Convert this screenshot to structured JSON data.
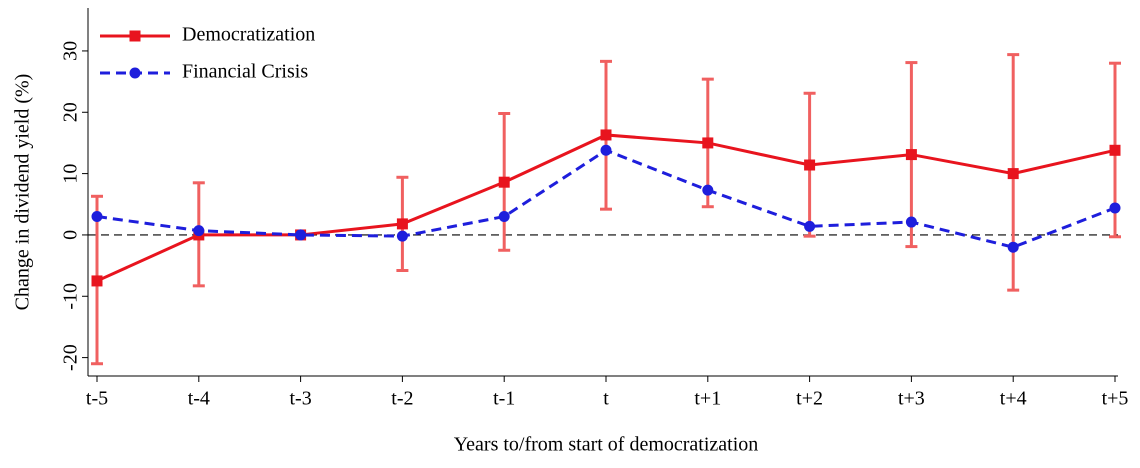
{
  "chart_data": {
    "type": "line",
    "y_label": "Change in dividend yield (%)",
    "x_label": "Years to/from start of democratization",
    "categories": [
      "t-5",
      "t-4",
      "t-3",
      "t-2",
      "t-1",
      "t",
      "t+1",
      "t+2",
      "t+3",
      "t+4",
      "t+5"
    ],
    "series": [
      {
        "name": "Democratization",
        "color": "#e8141e",
        "error_color": "#f06060",
        "dash": false,
        "marker": "square",
        "values": [
          -7.5,
          0,
          0,
          1.8,
          8.6,
          16.3,
          15,
          11.4,
          13.1,
          10,
          13.8
        ],
        "error_lower": [
          -21,
          -8.3,
          null,
          -5.8,
          -2.5,
          4.2,
          4.6,
          -0.2,
          -1.9,
          -9,
          -0.3
        ],
        "error_upper": [
          6.3,
          8.5,
          null,
          9.4,
          19.8,
          28.3,
          25.4,
          23.1,
          28.1,
          29.4,
          28
        ]
      },
      {
        "name": "Financial Crisis",
        "color": "#1e1edc",
        "dash": true,
        "marker": "circle",
        "values": [
          3,
          0.7,
          0,
          -0.2,
          3,
          13.8,
          7.3,
          1.4,
          2.1,
          -2,
          4.4
        ]
      }
    ],
    "ylim": [
      -23,
      37
    ],
    "yticks": [
      -20,
      -10,
      0,
      10,
      20,
      30
    ],
    "reference_line": 0,
    "legend": "upper-left"
  }
}
